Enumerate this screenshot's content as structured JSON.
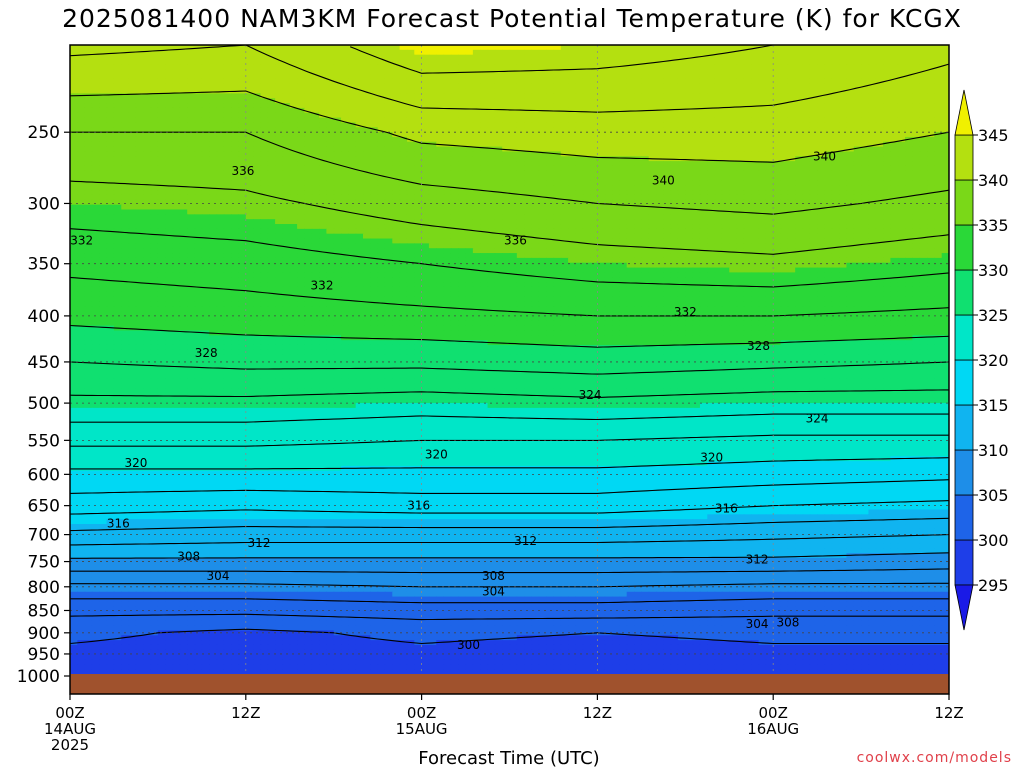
{
  "chart_data": {
    "type": "heatmap",
    "title": "2025081400 NAM3KM Forecast Potential Temperature (K) for KCGX",
    "xlabel": "Forecast Time (UTC)",
    "ylabel": "",
    "y_scale": "log-pressure",
    "y_inverted": true,
    "ylim": [
      1000,
      200
    ],
    "xlim_hours": [
      0,
      60
    ],
    "y_ticks": [
      250,
      300,
      350,
      400,
      450,
      500,
      550,
      600,
      650,
      700,
      750,
      800,
      850,
      900,
      950,
      1000
    ],
    "x_ticks": [
      {
        "hour": 0,
        "lines": [
          "00Z",
          "14AUG",
          "2025"
        ]
      },
      {
        "hour": 12,
        "lines": [
          "12Z"
        ]
      },
      {
        "hour": 24,
        "lines": [
          "00Z",
          "15AUG"
        ]
      },
      {
        "hour": 36,
        "lines": [
          "12Z"
        ]
      },
      {
        "hour": 48,
        "lines": [
          "00Z",
          "16AUG"
        ]
      },
      {
        "hour": 60,
        "lines": [
          "12Z"
        ]
      }
    ],
    "grid": true,
    "colorbar": {
      "levels": [
        295,
        300,
        305,
        310,
        315,
        320,
        325,
        330,
        335,
        340,
        345
      ],
      "colors": [
        "#1a1ae6",
        "#1e3ee8",
        "#1e64e8",
        "#1e8ee8",
        "#10b4f0",
        "#00d8f4",
        "#00e6c8",
        "#10e070",
        "#2ad838",
        "#7ad818",
        "#b4e010",
        "#f0f000"
      ]
    },
    "contour_levels": [
      300,
      302,
      304,
      306,
      308,
      310,
      312,
      314,
      316,
      318,
      320,
      322,
      324,
      326,
      328,
      330,
      332,
      334,
      336,
      338,
      340,
      342,
      344
    ],
    "profiles": {
      "pressure": [
        200,
        250,
        300,
        350,
        400,
        450,
        500,
        550,
        600,
        650,
        700,
        750,
        800,
        850,
        900,
        950,
        1000
      ],
      "hours": [
        0,
        12,
        24,
        36,
        48,
        60
      ],
      "theta": [
        [
          342.5,
          342.0,
          345.5,
          345.0,
          344.0,
          342.5
        ],
        [
          338.0,
          338.0,
          340.5,
          341.0,
          341.0,
          340.0
        ],
        [
          335.0,
          335.5,
          337.0,
          338.0,
          338.5,
          337.5
        ],
        [
          332.5,
          333.0,
          334.0,
          335.0,
          335.5,
          334.5
        ],
        [
          330.5,
          331.0,
          331.5,
          332.0,
          332.0,
          331.5
        ],
        [
          328.0,
          328.5,
          328.5,
          329.0,
          328.5,
          328.0
        ],
        [
          325.5,
          325.5,
          325.0,
          325.5,
          325.0,
          325.0
        ],
        [
          322.5,
          322.5,
          322.0,
          322.0,
          321.5,
          321.5
        ],
        [
          319.5,
          319.5,
          319.5,
          319.5,
          319.0,
          318.5
        ],
        [
          317.0,
          316.5,
          317.0,
          317.0,
          316.0,
          315.5
        ],
        [
          313.5,
          313.0,
          313.0,
          313.0,
          312.5,
          312.0
        ],
        [
          309.5,
          309.5,
          309.5,
          309.5,
          309.5,
          309.0
        ],
        [
          305.5,
          305.5,
          306.0,
          306.0,
          305.5,
          305.5
        ],
        [
          302.5,
          302.5,
          303.0,
          303.0,
          302.5,
          302.5
        ],
        [
          300.5,
          299.5,
          300.5,
          300.0,
          300.5,
          300.5
        ],
        [
          299.5,
          299.0,
          299.5,
          299.0,
          299.5,
          299.5
        ],
        [
          299.0,
          298.5,
          299.0,
          298.5,
          299.0,
          299.0
        ]
      ]
    },
    "contour_labels": [
      {
        "text": "336",
        "hour": 11.8,
        "p": 276
      },
      {
        "text": "340",
        "hour": 40.5,
        "p": 283
      },
      {
        "text": "340",
        "hour": 51.5,
        "p": 266
      },
      {
        "text": "332",
        "hour": 0.8,
        "p": 330
      },
      {
        "text": "336",
        "hour": 30.4,
        "p": 330
      },
      {
        "text": "332",
        "hour": 17.2,
        "p": 370
      },
      {
        "text": "332",
        "hour": 42.0,
        "p": 396
      },
      {
        "text": "328",
        "hour": 9.3,
        "p": 440
      },
      {
        "text": "328",
        "hour": 47.0,
        "p": 432
      },
      {
        "text": "324",
        "hour": 35.5,
        "p": 490
      },
      {
        "text": "324",
        "hour": 51.0,
        "p": 520
      },
      {
        "text": "320",
        "hour": 4.5,
        "p": 583
      },
      {
        "text": "320",
        "hour": 25.0,
        "p": 570
      },
      {
        "text": "320",
        "hour": 43.8,
        "p": 575
      },
      {
        "text": "316",
        "hour": 23.8,
        "p": 650
      },
      {
        "text": "316",
        "hour": 44.8,
        "p": 655
      },
      {
        "text": "316",
        "hour": 3.3,
        "p": 680
      },
      {
        "text": "312",
        "hour": 12.9,
        "p": 715
      },
      {
        "text": "312",
        "hour": 31.1,
        "p": 712
      },
      {
        "text": "312",
        "hour": 46.9,
        "p": 746
      },
      {
        "text": "308",
        "hour": 8.1,
        "p": 740
      },
      {
        "text": "308",
        "hour": 28.9,
        "p": 778
      },
      {
        "text": "308",
        "hour": 49.0,
        "p": 877
      },
      {
        "text": "304",
        "hour": 10.1,
        "p": 778
      },
      {
        "text": "304",
        "hour": 28.9,
        "p": 810
      },
      {
        "text": "304",
        "hour": 46.9,
        "p": 880
      },
      {
        "text": "300",
        "hour": 27.2,
        "p": 928
      }
    ]
  },
  "footer": {
    "credit": "coolwx.com/models"
  }
}
